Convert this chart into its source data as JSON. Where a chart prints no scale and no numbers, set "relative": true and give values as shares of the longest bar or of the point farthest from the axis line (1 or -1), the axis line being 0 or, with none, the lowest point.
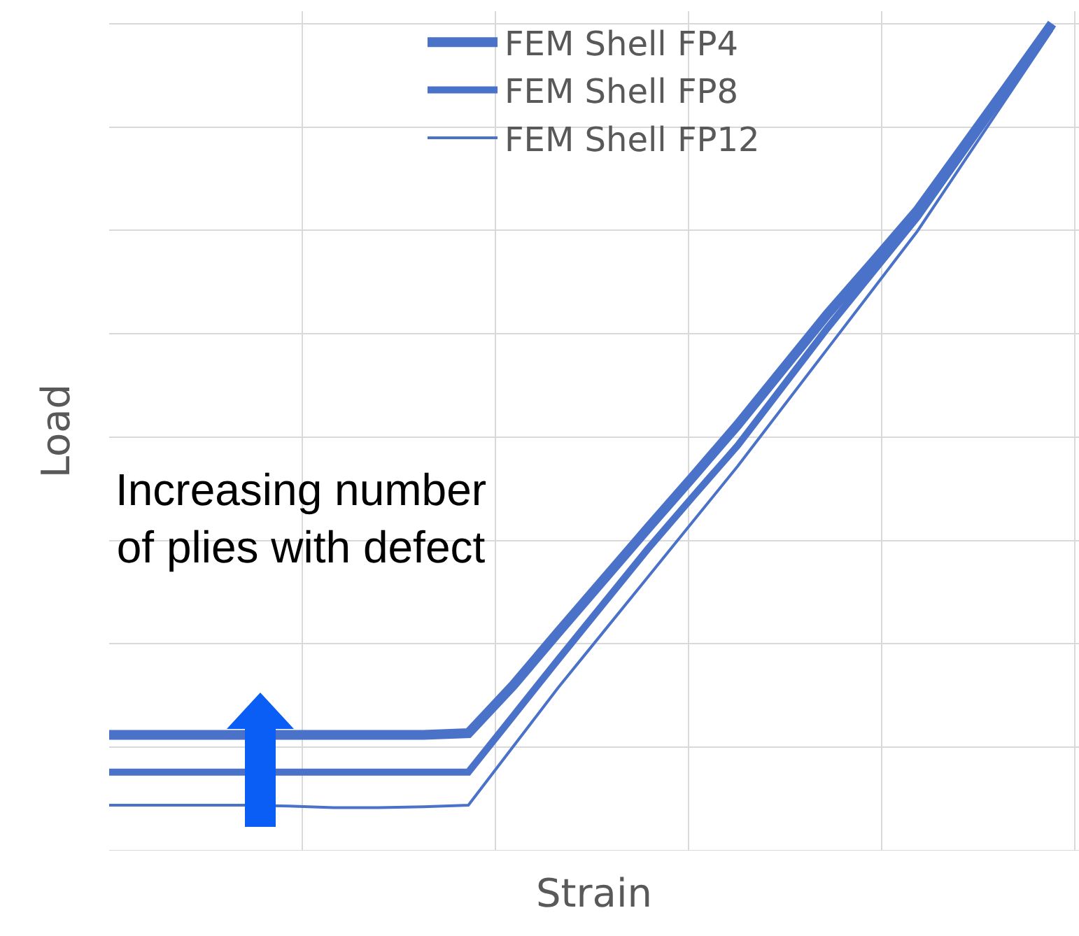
{
  "chart_data": {
    "type": "line",
    "relative": true,
    "xlabel": "Strain",
    "ylabel": "Load",
    "grid": true,
    "legend": "top",
    "marker": "none",
    "line_style": "solid",
    "categories": [
      null,
      null,
      null,
      null,
      null,
      null,
      null,
      null,
      null,
      null,
      null,
      null,
      null,
      null,
      null,
      null,
      null,
      null,
      null,
      null,
      null,
      null
    ],
    "series": [
      {
        "name": "FEM Shell FP4",
        "color": "#4a72c8",
        "values": [
          0.14,
          0.14,
          0.14,
          0.14,
          0.14,
          0.14,
          0.14,
          0.14,
          0.142,
          0.2,
          0.264,
          0.327,
          0.39,
          0.452,
          0.515,
          0.582,
          0.649,
          0.711,
          0.774,
          0.849,
          0.924,
          1
        ]
      },
      {
        "name": "FEM Shell FP8",
        "color": "#4a72c8",
        "values": [
          0.095,
          0.095,
          0.095,
          0.095,
          0.095,
          0.095,
          0.095,
          0.095,
          0.095,
          0.163,
          0.231,
          0.298,
          0.365,
          0.428,
          0.49,
          0.561,
          0.632,
          0.699,
          0.766,
          0.843,
          0.92,
          0.997
        ]
      },
      {
        "name": "FEM Shell FP12",
        "color": "#4a72c8",
        "values": [
          0.055,
          0.055,
          0.055,
          0.055,
          0.054,
          0.052,
          0.052,
          0.053,
          0.055,
          0.126,
          0.197,
          0.264,
          0.331,
          0.398,
          0.465,
          0.536,
          0.607,
          0.678,
          0.749,
          0.83,
          0.911,
          0.992
        ]
      }
    ],
    "annotations": [
      "Increasing number of plies with defect"
    ]
  }
}
